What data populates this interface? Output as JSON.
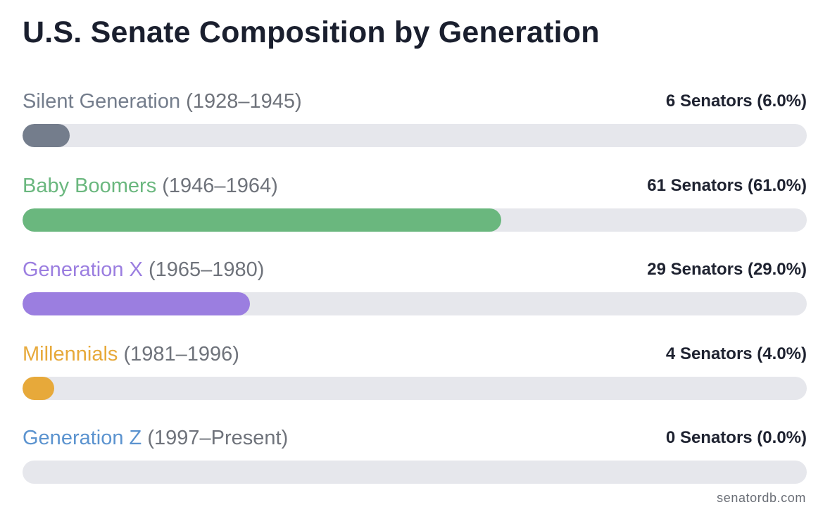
{
  "chart_data": {
    "type": "bar",
    "orientation": "horizontal",
    "title": "U.S. Senate Composition by Generation",
    "categories": [
      "Silent Generation (1928–1945)",
      "Baby Boomers (1946–1964)",
      "Generation X (1965–1980)",
      "Millennials (1981–1996)",
      "Generation Z (1997–Present)"
    ],
    "values": [
      6,
      61,
      29,
      4,
      0
    ],
    "xlim": [
      0,
      100
    ],
    "grid": false,
    "rows": [
      {
        "name": "Silent Generation",
        "years": "(1928–1945)",
        "value": 6,
        "percent": 6.0,
        "display": "6 Senators (6.0%)",
        "color": "#747d8c"
      },
      {
        "name": "Baby Boomers",
        "years": "(1946–1964)",
        "value": 61,
        "percent": 61.0,
        "display": "61 Senators (61.0%)",
        "color": "#6ab77e"
      },
      {
        "name": "Generation X",
        "years": "(1965–1980)",
        "value": 29,
        "percent": 29.0,
        "display": "29 Senators (29.0%)",
        "color": "#9b7ee0"
      },
      {
        "name": "Millennials",
        "years": "(1981–1996)",
        "value": 4,
        "percent": 4.0,
        "display": "4 Senators (4.0%)",
        "color": "#e7a93a"
      },
      {
        "name": "Generation Z",
        "years": "(1997–Present)",
        "value": 0,
        "percent": 0.0,
        "display": "0 Senators (0.0%)",
        "color": "#5b93cf"
      }
    ]
  },
  "source": "senatordb.com"
}
